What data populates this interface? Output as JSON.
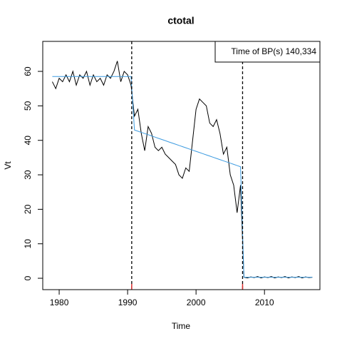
{
  "chart_data": {
    "type": "line",
    "title": "ctotal",
    "x_label": "Time",
    "y_label": "Vt",
    "x": [
      1979,
      1979.5,
      1980,
      1980.5,
      1981,
      1981.5,
      1982,
      1982.5,
      1983,
      1983.5,
      1984,
      1984.5,
      1985,
      1985.5,
      1986,
      1986.5,
      1987,
      1987.5,
      1988,
      1988.5,
      1989,
      1989.5,
      1990,
      1990.5,
      1991,
      1991.5,
      1992,
      1992.5,
      1993,
      1993.5,
      1994,
      1994.5,
      1995,
      1995.5,
      1996,
      1996.5,
      1997,
      1997.5,
      1998,
      1998.5,
      1999,
      1999.5,
      2000,
      2000.5,
      2001,
      2001.5,
      2002,
      2002.5,
      2003,
      2003.5,
      2004,
      2004.5,
      2005,
      2005.5,
      2006,
      2006.5,
      2007,
      2007.5,
      2008,
      2008.5,
      2009,
      2009.5,
      2010,
      2010.5,
      2011,
      2011.5,
      2012,
      2012.5,
      2013,
      2013.5,
      2014,
      2014.5,
      2015,
      2015.5,
      2016,
      2016.5,
      2017
    ],
    "series": [
      {
        "color": "#000000",
        "values": [
          57,
          55,
          58,
          57,
          59,
          57,
          60,
          56,
          59,
          58,
          60,
          56,
          59,
          57,
          58,
          56,
          59,
          58,
          60,
          63,
          57,
          60,
          59,
          56,
          47,
          49,
          42,
          37,
          44,
          42,
          38,
          37,
          38,
          36,
          35,
          34,
          33,
          30,
          29,
          32,
          31,
          40,
          49,
          52,
          51,
          50,
          45,
          44,
          46,
          42,
          36,
          38,
          30,
          27,
          19,
          27,
          0.3,
          0.1,
          0.4,
          0.2,
          0.5,
          0.1,
          0.4,
          0.2,
          0.5,
          0.1,
          0.4,
          0.2,
          0.5,
          0.1,
          0.4,
          0.2,
          0.5,
          0.1,
          0.4,
          0.2,
          0.3
        ]
      },
      {
        "color": "#3d9be0",
        "values": [
          58.5,
          58.5,
          58.5,
          58.5,
          58.5,
          58.5,
          58.5,
          58.5,
          58.5,
          58.5,
          58.5,
          58.5,
          58.5,
          58.5,
          58.5,
          58.5,
          58.5,
          58.5,
          58.5,
          58.5,
          58.5,
          58.5,
          58.5,
          58.5,
          43.0,
          42.66,
          42.31,
          41.97,
          41.63,
          41.28,
          40.94,
          40.59,
          40.25,
          39.91,
          39.56,
          39.22,
          38.88,
          38.53,
          38.19,
          37.84,
          37.5,
          37.16,
          36.81,
          36.47,
          36.13,
          35.78,
          35.44,
          35.09,
          34.75,
          34.41,
          34.06,
          33.72,
          33.38,
          33.03,
          32.69,
          32.34,
          0.3,
          0.3,
          0.3,
          0.3,
          0.3,
          0.3,
          0.3,
          0.3,
          0.3,
          0.3,
          0.3,
          0.3,
          0.3,
          0.3,
          0.3,
          0.3,
          0.3,
          0.3,
          0.3,
          0.3,
          0.3
        ]
      }
    ],
    "breakpoints": [
      1990.6,
      2006.8
    ],
    "breakpoint_color": "#000000",
    "ci_color": "#e03030",
    "annotation": "Time of BP(s) 140,334",
    "xlim": [
      1977.6,
      2018.1
    ],
    "ylim": [
      -3.3,
      68.7
    ],
    "xticks": [
      1980,
      1990,
      2000,
      2010
    ],
    "yticks": [
      0,
      10,
      20,
      30,
      40,
      50,
      60
    ]
  }
}
